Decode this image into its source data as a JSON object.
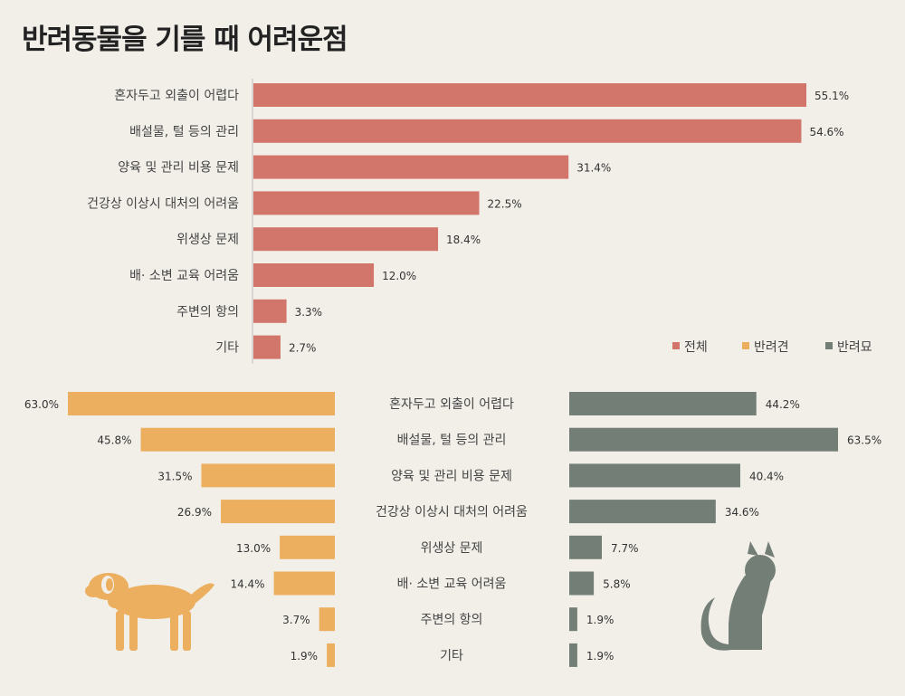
{
  "title": "반려동물을 기를 때 어려운점",
  "colors": {
    "total": "#d2766b",
    "dog": "#ebaf5f",
    "cat": "#727e76",
    "axis": "#bbbbbb"
  },
  "chart_data": [
    {
      "type": "bar",
      "orientation": "horizontal",
      "categories": [
        "혼자두고 외출이 어렵다",
        "배설물, 털 등의 관리",
        "양육 및 관리 비용 문제",
        "건강상 이상시 대처의 어려움",
        "위생상 문제",
        "배· 소변 교육 어려움",
        "주변의 항의",
        "기타"
      ],
      "series": [
        {
          "name": "전체",
          "values": [
            55.1,
            54.6,
            31.4,
            22.5,
            18.4,
            12.0,
            3.3,
            2.7
          ]
        }
      ],
      "value_labels": [
        "55.1%",
        "54.6%",
        "31.4%",
        "22.5%",
        "18.4%",
        "12.0%",
        "3.3%",
        "2.7%"
      ]
    },
    {
      "type": "bar",
      "orientation": "horizontal-mirrored",
      "categories": [
        "혼자두고 외출이 어렵다",
        "배설물, 털 등의 관리",
        "양육 및 관리 비용 문제",
        "건강상 이상시 대처의 어려움",
        "위생상 문제",
        "배· 소변 교육 어려움",
        "주변의 항의",
        "기타"
      ],
      "series": [
        {
          "name": "반려견",
          "values": [
            63.0,
            45.8,
            31.5,
            26.9,
            13.0,
            14.4,
            3.7,
            1.9
          ],
          "labels": [
            "63.0%",
            "45.8%",
            "31.5%",
            "26.9%",
            "13.0%",
            "14.4%",
            "3.7%",
            "1.9%"
          ]
        },
        {
          "name": "반려묘",
          "values": [
            44.2,
            63.5,
            40.4,
            34.6,
            7.7,
            5.8,
            1.9,
            1.9
          ],
          "labels": [
            "44.2%",
            "63.5%",
            "40.4%",
            "34.6%",
            "7.7%",
            "5.8%",
            "1.9%",
            "1.9%"
          ]
        }
      ]
    }
  ],
  "legend": {
    "position": "right",
    "items": [
      "전체",
      "반려견",
      "반려묘"
    ]
  },
  "icons": [
    "dog-icon",
    "cat-icon"
  ]
}
